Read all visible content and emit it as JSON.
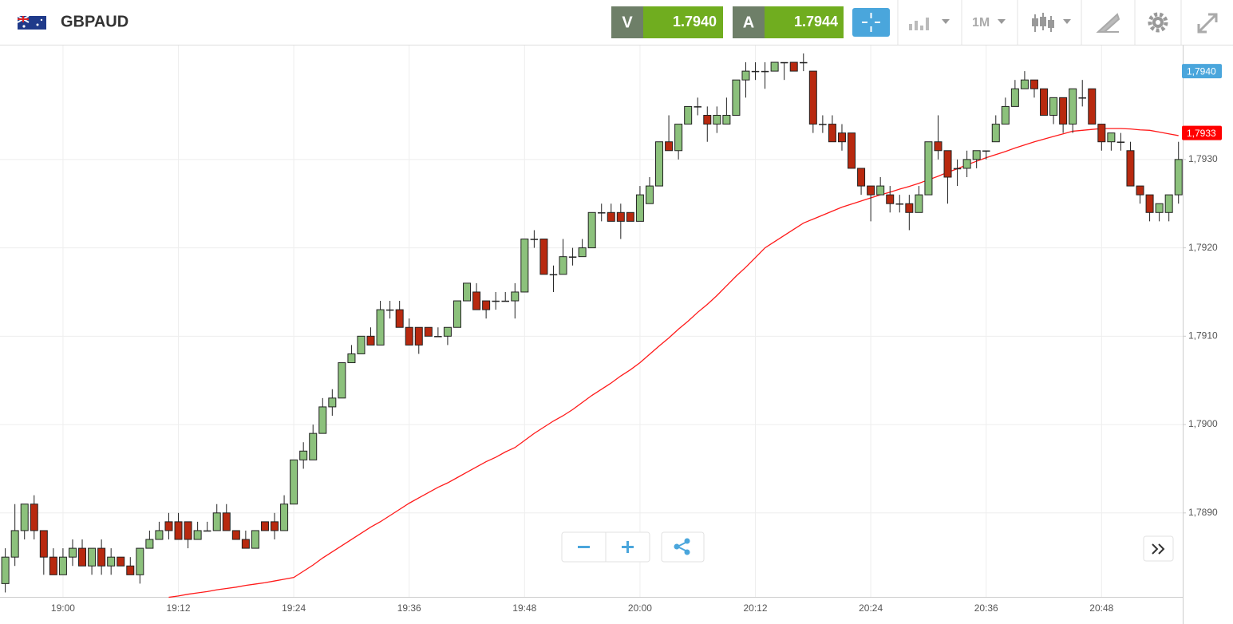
{
  "header": {
    "instrument": "GBPAUD",
    "sell": {
      "label": "V",
      "price": "1.7940"
    },
    "buy": {
      "label": "A",
      "price": "1.7944"
    },
    "timeframe": "1M"
  },
  "chart_data": {
    "type": "candlestick",
    "categories": [
      null,
      null,
      null,
      null,
      null,
      null,
      "19:00",
      null,
      null,
      null,
      null,
      null,
      null,
      null,
      null,
      null,
      null,
      null,
      "19:12",
      null,
      null,
      null,
      null,
      null,
      null,
      null,
      null,
      null,
      null,
      null,
      "19:24",
      null,
      null,
      null,
      null,
      null,
      null,
      null,
      null,
      null,
      null,
      null,
      "19:36",
      null,
      null,
      null,
      null,
      null,
      null,
      null,
      null,
      null,
      null,
      null,
      "19:48",
      null,
      null,
      null,
      null,
      null,
      null,
      null,
      null,
      null,
      null,
      null,
      "20:00",
      null,
      null,
      null,
      null,
      null,
      null,
      null,
      null,
      null,
      null,
      null,
      "20:12",
      null,
      null,
      null,
      null,
      null,
      null,
      null,
      null,
      null,
      null,
      null,
      "20:24",
      null,
      null,
      null,
      null,
      null,
      null,
      null,
      null,
      null,
      null,
      null,
      "20:36",
      null,
      null,
      null,
      null,
      null,
      null,
      null,
      null,
      null,
      null,
      null,
      "20:48",
      null,
      null,
      null,
      null,
      null,
      null,
      null,
      null
    ],
    "open": [
      1.7882,
      1.7885,
      1.7888,
      1.7891,
      1.7888,
      1.7885,
      1.7883,
      1.7885,
      1.7886,
      1.7884,
      1.7886,
      1.7884,
      1.7885,
      1.7884,
      1.7883,
      1.7886,
      1.7887,
      1.7889,
      1.7889,
      1.7889,
      1.7887,
      1.7888,
      1.7888,
      1.789,
      1.7888,
      1.7887,
      1.7886,
      1.7889,
      1.7889,
      1.7888,
      1.7891,
      1.7896,
      1.7896,
      1.7899,
      1.7902,
      1.7903,
      1.7907,
      1.7908,
      1.791,
      1.7909,
      1.7913,
      1.7913,
      1.7911,
      1.7911,
      1.7911,
      1.791,
      1.791,
      1.7911,
      1.7914,
      1.7915,
      1.7914,
      1.7914,
      1.7914,
      1.7914,
      1.7915,
      1.7921,
      1.7921,
      1.7917,
      1.7917,
      1.7919,
      1.7919,
      1.792,
      1.7924,
      1.7924,
      1.7924,
      1.7924,
      1.7923,
      1.7925,
      1.7927,
      1.7932,
      1.7931,
      1.7934,
      1.7936,
      1.7935,
      1.7934,
      1.7934,
      1.7935,
      1.7939,
      1.794,
      1.794,
      1.794,
      1.7941,
      1.7941,
      1.7941,
      1.794,
      1.7934,
      1.7934,
      1.7933,
      1.7933,
      1.7929,
      1.7927,
      1.7926,
      1.7926,
      1.7925,
      1.7925,
      1.7924,
      1.7926,
      1.7932,
      1.7931,
      1.7929,
      1.7929,
      1.793,
      1.7931,
      1.7932,
      1.7934,
      1.7936,
      1.7938,
      1.7939,
      1.7938,
      1.7935,
      1.7937,
      1.7934,
      1.7937,
      1.7938,
      1.7934,
      1.7932,
      1.7932,
      1.7931,
      1.7927,
      1.7926,
      1.7924,
      1.7924,
      1.7926
    ],
    "high": [
      1.7886,
      1.7891,
      1.7891,
      1.7892,
      1.7888,
      1.7886,
      1.7886,
      1.7887,
      1.7887,
      1.7886,
      1.7887,
      1.7886,
      1.7885,
      1.7885,
      1.7886,
      1.7888,
      1.7889,
      1.789,
      1.789,
      1.7889,
      1.7889,
      1.7889,
      1.7891,
      1.7891,
      1.7888,
      1.7888,
      1.7888,
      1.7889,
      1.789,
      1.7892,
      1.7896,
      1.7898,
      1.79,
      1.7903,
      1.7904,
      1.7907,
      1.7909,
      1.791,
      1.7911,
      1.7914,
      1.7914,
      1.7914,
      1.7912,
      1.7911,
      1.7911,
      1.7911,
      1.7911,
      1.7914,
      1.7916,
      1.7916,
      1.7914,
      1.7915,
      1.7915,
      1.7916,
      1.7921,
      1.7922,
      1.7921,
      1.7918,
      1.7921,
      1.792,
      1.7921,
      1.7924,
      1.7925,
      1.7925,
      1.7925,
      1.7924,
      1.7927,
      1.7928,
      1.7932,
      1.7935,
      1.7934,
      1.7936,
      1.7937,
      1.7936,
      1.7936,
      1.7937,
      1.7939,
      1.7941,
      1.7941,
      1.7941,
      1.7941,
      1.7941,
      1.7941,
      1.7942,
      1.794,
      1.7935,
      1.7935,
      1.7934,
      1.7933,
      1.7929,
      1.7927,
      1.7928,
      1.7927,
      1.7926,
      1.7926,
      1.7927,
      1.7932,
      1.7935,
      1.7931,
      1.793,
      1.7931,
      1.7931,
      1.7931,
      1.7935,
      1.7937,
      1.7939,
      1.794,
      1.7939,
      1.7938,
      1.7937,
      1.7937,
      1.7938,
      1.7939,
      1.7938,
      1.7934,
      1.7933,
      1.7933,
      1.7932,
      1.7927,
      1.7926,
      1.7925,
      1.7926,
      1.7932
    ],
    "low": [
      1.7881,
      1.7884,
      1.7887,
      1.7887,
      1.7883,
      1.7883,
      1.7883,
      1.7884,
      1.7884,
      1.7883,
      1.7883,
      1.7883,
      1.7884,
      1.7883,
      1.7882,
      1.7886,
      1.7887,
      1.7887,
      1.7887,
      1.7886,
      1.7887,
      1.7888,
      1.7888,
      1.7888,
      1.7887,
      1.7886,
      1.7886,
      1.7888,
      1.7887,
      1.7888,
      1.7891,
      1.7895,
      1.7896,
      1.7899,
      1.7901,
      1.7903,
      1.7907,
      1.7908,
      1.7909,
      1.7909,
      1.7912,
      1.7911,
      1.7909,
      1.7908,
      1.791,
      1.791,
      1.7909,
      1.7911,
      1.7914,
      1.7913,
      1.7912,
      1.7913,
      1.7914,
      1.7912,
      1.7915,
      1.792,
      1.7917,
      1.7915,
      1.7917,
      1.7918,
      1.7919,
      1.792,
      1.7923,
      1.7923,
      1.7921,
      1.7923,
      1.7923,
      1.7925,
      1.7927,
      1.7931,
      1.793,
      1.7934,
      1.7935,
      1.7932,
      1.7933,
      1.7934,
      1.7935,
      1.7937,
      1.7939,
      1.7938,
      1.794,
      1.7939,
      1.794,
      1.794,
      1.7933,
      1.7933,
      1.7932,
      1.7931,
      1.7929,
      1.7926,
      1.7923,
      1.7926,
      1.7924,
      1.7924,
      1.7922,
      1.7924,
      1.7926,
      1.793,
      1.7925,
      1.7927,
      1.7928,
      1.7929,
      1.793,
      1.7932,
      1.7934,
      1.7936,
      1.7938,
      1.7937,
      1.7935,
      1.7934,
      1.7933,
      1.7933,
      1.7936,
      1.7934,
      1.7931,
      1.7931,
      1.7931,
      1.7927,
      1.7925,
      1.7923,
      1.7923,
      1.7923,
      1.7925
    ],
    "close": [
      1.7885,
      1.7888,
      1.7891,
      1.7888,
      1.7885,
      1.7883,
      1.7885,
      1.7886,
      1.7884,
      1.7886,
      1.7884,
      1.7885,
      1.7884,
      1.7883,
      1.7886,
      1.7887,
      1.7888,
      1.7888,
      1.7887,
      1.7887,
      1.7888,
      1.7888,
      1.789,
      1.7888,
      1.7887,
      1.7886,
      1.7888,
      1.7888,
      1.7888,
      1.7891,
      1.7896,
      1.7897,
      1.7899,
      1.7902,
      1.7903,
      1.7907,
      1.7908,
      1.791,
      1.7909,
      1.7913,
      1.7913,
      1.7911,
      1.7909,
      1.7909,
      1.791,
      1.791,
      1.7911,
      1.7914,
      1.7916,
      1.7913,
      1.7913,
      1.7914,
      1.7914,
      1.7915,
      1.7921,
      1.7921,
      1.7917,
      1.7917,
      1.7919,
      1.7919,
      1.792,
      1.7924,
      1.7924,
      1.7923,
      1.7923,
      1.7923,
      1.7926,
      1.7927,
      1.7932,
      1.7931,
      1.7934,
      1.7936,
      1.7936,
      1.7934,
      1.7935,
      1.7935,
      1.7939,
      1.794,
      1.794,
      1.794,
      1.7941,
      1.7941,
      1.794,
      1.7941,
      1.7934,
      1.7934,
      1.7932,
      1.7932,
      1.7929,
      1.7927,
      1.7926,
      1.7927,
      1.7925,
      1.7925,
      1.7924,
      1.7926,
      1.7932,
      1.7931,
      1.7928,
      1.7929,
      1.793,
      1.7931,
      1.7931,
      1.7934,
      1.7936,
      1.7938,
      1.7939,
      1.7938,
      1.7935,
      1.7937,
      1.7934,
      1.7938,
      1.7937,
      1.7934,
      1.7932,
      1.7933,
      1.7932,
      1.7927,
      1.7926,
      1.7924,
      1.7925,
      1.7926,
      1.793
    ],
    "up_color": "#8cc17c",
    "down_color": "#b8290f",
    "overlay": {
      "color": "#ff1a1a",
      "values": [
        null,
        null,
        null,
        null,
        null,
        null,
        null,
        null,
        null,
        null,
        null,
        null,
        null,
        null,
        null,
        null,
        null,
        1.788045,
        1.78806,
        1.78808,
        1.788095,
        1.78811,
        1.78813,
        1.788145,
        1.78816,
        1.78818,
        1.788195,
        1.78821,
        1.78823,
        1.78825,
        1.78827,
        1.78834,
        1.78841,
        1.78849,
        1.78856,
        1.78863,
        1.7887,
        1.78877,
        1.78884,
        1.7889,
        1.78897,
        1.78904,
        1.78911,
        1.78917,
        1.78923,
        1.78929,
        1.78934,
        1.7894,
        1.78946,
        1.78952,
        1.78958,
        1.78963,
        1.78969,
        1.78974,
        1.78982,
        1.7899,
        1.78997,
        1.79004,
        1.7901,
        1.79017,
        1.79025,
        1.79033,
        1.7904,
        1.79047,
        1.79055,
        1.79062,
        1.7907,
        1.790795,
        1.79089,
        1.79098,
        1.79108,
        1.79117,
        1.79127,
        1.79136,
        1.79146,
        1.79157,
        1.79168,
        1.79178,
        1.79189,
        1.792,
        1.79207,
        1.79214,
        1.79221,
        1.79228,
        1.792325,
        1.79237,
        1.792415,
        1.79246,
        1.792495,
        1.79253,
        1.792565,
        1.7926,
        1.79263,
        1.792665,
        1.792695,
        1.79273,
        1.79277,
        1.79281,
        1.792855,
        1.792895,
        1.79294,
        1.79298,
        1.79302,
        1.793055,
        1.79309,
        1.79313,
        1.793165,
        1.7932,
        1.79323,
        1.79326,
        1.79329,
        1.79332,
        1.79333,
        1.79334,
        1.79335,
        1.79335,
        1.79335,
        1.793345,
        1.793335,
        1.79333,
        1.79331,
        1.79329,
        1.79327
      ]
    },
    "ylim": [
      1.78805,
      1.79429
    ],
    "yticks": [
      {
        "value": 1.789,
        "label": "1,7890"
      },
      {
        "value": 1.79,
        "label": "1,7900"
      },
      {
        "value": 1.791,
        "label": "1,7910"
      },
      {
        "value": 1.792,
        "label": "1,7920"
      },
      {
        "value": 1.793,
        "label": "1,7930"
      }
    ],
    "markers": [
      {
        "value": 1.794,
        "label": "1,7940",
        "color": "#4aa6dc"
      },
      {
        "value": 1.7933,
        "label": "1,7933",
        "color": "#ff0000"
      }
    ],
    "grid": true
  }
}
